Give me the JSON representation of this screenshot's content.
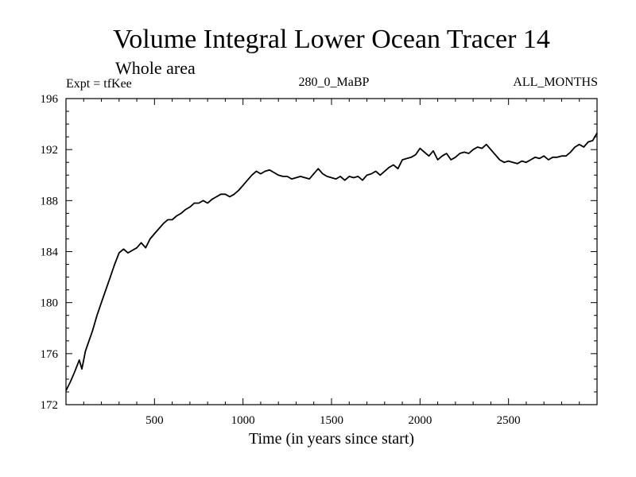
{
  "chart_data": {
    "type": "line",
    "title": "Volume Integral Lower Ocean Tracer 14",
    "subtitle": "Whole area",
    "info_left": "Expt = tfKee",
    "info_center": "280_0_MaBP",
    "info_right": "ALL_MONTHS",
    "xlabel": "Time (in years since start)",
    "ylabel": "",
    "xlim": [
      0,
      3000
    ],
    "ylim": [
      172,
      196
    ],
    "x_ticks": [
      500,
      1000,
      1500,
      2000,
      2500
    ],
    "y_ticks": [
      172,
      176,
      180,
      184,
      188,
      192,
      196
    ],
    "grid": false,
    "series": [
      {
        "color": "#000000",
        "x": [
          0,
          25,
          50,
          75,
          90,
          110,
          130,
          150,
          175,
          200,
          225,
          250,
          275,
          300,
          325,
          350,
          375,
          400,
          425,
          450,
          475,
          500,
          525,
          550,
          575,
          600,
          625,
          650,
          675,
          700,
          725,
          750,
          775,
          800,
          825,
          850,
          875,
          900,
          925,
          950,
          975,
          1000,
          1025,
          1050,
          1075,
          1100,
          1125,
          1150,
          1175,
          1200,
          1225,
          1250,
          1275,
          1300,
          1325,
          1350,
          1375,
          1400,
          1425,
          1450,
          1475,
          1500,
          1525,
          1550,
          1575,
          1600,
          1625,
          1650,
          1675,
          1700,
          1725,
          1750,
          1775,
          1800,
          1825,
          1850,
          1875,
          1900,
          1925,
          1950,
          1975,
          2000,
          2025,
          2050,
          2075,
          2100,
          2125,
          2150,
          2175,
          2200,
          2225,
          2250,
          2275,
          2300,
          2325,
          2350,
          2375,
          2400,
          2425,
          2450,
          2475,
          2500,
          2525,
          2550,
          2575,
          2600,
          2625,
          2650,
          2675,
          2700,
          2725,
          2750,
          2775,
          2800,
          2825,
          2850,
          2875,
          2900,
          2925,
          2950,
          2975,
          3000
        ],
        "y": [
          173.1,
          173.8,
          174.6,
          175.5,
          174.8,
          176.2,
          177.0,
          177.8,
          179.0,
          180.0,
          181.0,
          182.0,
          183.0,
          183.9,
          184.2,
          183.9,
          184.1,
          184.3,
          184.7,
          184.3,
          185.0,
          185.4,
          185.8,
          186.2,
          186.5,
          186.5,
          186.8,
          187.0,
          187.3,
          187.5,
          187.8,
          187.8,
          188.0,
          187.8,
          188.1,
          188.3,
          188.5,
          188.5,
          188.3,
          188.5,
          188.8,
          189.2,
          189.6,
          190.0,
          190.3,
          190.1,
          190.3,
          190.4,
          190.2,
          190.0,
          189.9,
          189.9,
          189.7,
          189.8,
          189.9,
          189.8,
          189.7,
          190.1,
          190.5,
          190.1,
          189.9,
          189.8,
          189.7,
          189.9,
          189.6,
          189.9,
          189.8,
          189.9,
          189.6,
          190.0,
          190.1,
          190.3,
          190.0,
          190.3,
          190.6,
          190.8,
          190.5,
          191.2,
          191.3,
          191.4,
          191.6,
          192.1,
          191.8,
          191.5,
          191.9,
          191.2,
          191.5,
          191.7,
          191.2,
          191.4,
          191.7,
          191.8,
          191.7,
          192.0,
          192.2,
          192.1,
          192.4,
          192.0,
          191.6,
          191.2,
          191.0,
          191.1,
          191.0,
          190.9,
          191.1,
          191.0,
          191.2,
          191.4,
          191.3,
          191.5,
          191.2,
          191.4,
          191.4,
          191.5,
          191.5,
          191.8,
          192.2,
          192.4,
          192.2,
          192.6,
          192.7,
          193.3
        ]
      }
    ]
  }
}
